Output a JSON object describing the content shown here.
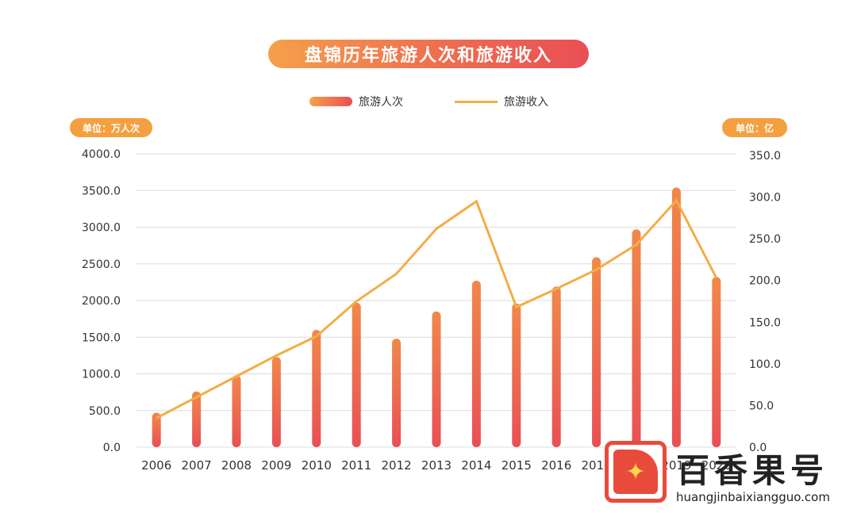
{
  "chart_data": {
    "type": "bar+line",
    "title": "盘锦历年旅游人次和旅游收入",
    "categories": [
      "2006",
      "2007",
      "2008",
      "2009",
      "2010",
      "2011",
      "2012",
      "2013",
      "2014",
      "2015",
      "2016",
      "2017",
      "2018",
      "2019",
      "2020"
    ],
    "series": [
      {
        "name": "旅游人次",
        "type": "bar",
        "axis": "left",
        "values": [
          470,
          760,
          980,
          1230,
          1600,
          1970,
          1480,
          1850,
          2270,
          1960,
          2190,
          2590,
          2970,
          3540,
          2320
        ]
      },
      {
        "name": "旅游收入",
        "type": "line",
        "axis": "right",
        "values": [
          35,
          60,
          85,
          110,
          133,
          175,
          208,
          262,
          295,
          168,
          190,
          213,
          243,
          296,
          203
        ]
      }
    ],
    "left_axis": {
      "unit_label": "单位：万人次",
      "ylim": [
        0,
        4000
      ],
      "ticks": [
        "0.0",
        "500.0",
        "1000.0",
        "1500.0",
        "2000.0",
        "2500.0",
        "3000.0",
        "3500.0",
        "4000.0"
      ]
    },
    "right_axis": {
      "unit_label": "单位：亿",
      "ylim": [
        0,
        350
      ],
      "ticks": [
        "0.0",
        "50.0",
        "100.0",
        "150.0",
        "200.0",
        "250.0",
        "300.0",
        "350.0"
      ]
    },
    "grid": true,
    "legend_position": "top-center"
  },
  "colors": {
    "bar_top": "#f0884a",
    "bar_bottom": "#e94f55",
    "line": "#f3ad45",
    "grid": "#dcdcdc",
    "title_start": "#f4a04c",
    "title_end": "#e94f55",
    "unit_pill": "#f5a040"
  },
  "watermark": {
    "name": "百香果号",
    "url": "huangjinbaixiangguo.com",
    "icon": "star-icon"
  }
}
